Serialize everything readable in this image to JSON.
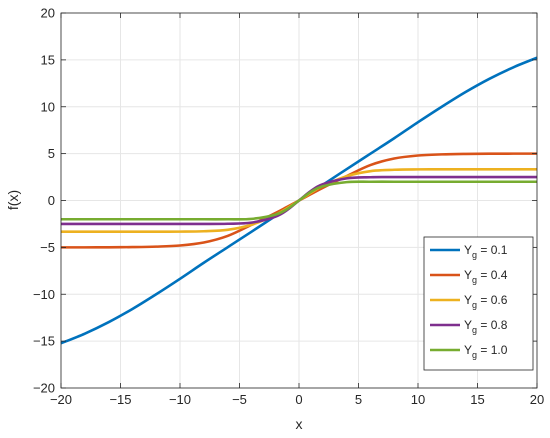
{
  "chart_data": {
    "type": "line",
    "title": "",
    "xlabel": "x",
    "ylabel": "f(x)",
    "xlim": [
      -20,
      20
    ],
    "ylim": [
      -20,
      20
    ],
    "xticks": [
      -20,
      -15,
      -10,
      -5,
      0,
      5,
      10,
      15,
      20
    ],
    "yticks": [
      -20,
      -15,
      -10,
      -5,
      0,
      5,
      10,
      15,
      20
    ],
    "xtick_labels": [
      "−20",
      "−15",
      "−10",
      "−5",
      "0",
      "5",
      "10",
      "15",
      "20"
    ],
    "ytick_labels": [
      "−20",
      "−15",
      "−10",
      "−5",
      "0",
      "5",
      "10",
      "15",
      "20"
    ],
    "grid": true,
    "legend_position": "bottom-right",
    "x": [
      -20,
      -18,
      -16,
      -14,
      -12,
      -10,
      -8,
      -6,
      -4,
      -2,
      -1,
      0,
      1,
      2,
      4,
      6,
      8,
      10,
      12,
      14,
      16,
      18,
      20
    ],
    "series": [
      {
        "name_main": "Y",
        "name_sub": "g",
        "name_rest": " = 0.1",
        "color": "#0072BD",
        "values": [
          -15.23,
          -14.2,
          -12.98,
          -11.57,
          -10.0,
          -8.35,
          -6.64,
          -4.99,
          -3.34,
          -1.67,
          -0.83,
          0.0,
          0.83,
          1.67,
          3.34,
          4.99,
          6.64,
          8.35,
          10.0,
          11.57,
          12.98,
          14.2,
          15.23
        ]
      },
      {
        "name_main": "Y",
        "name_sub": "g",
        "name_rest": " = 0.4",
        "color": "#D95319",
        "values": [
          -5.0,
          -5.0,
          -4.99,
          -4.97,
          -4.92,
          -4.8,
          -4.48,
          -3.78,
          -2.6,
          -1.35,
          -0.68,
          0.0,
          0.68,
          1.35,
          2.6,
          3.78,
          4.48,
          4.8,
          4.92,
          4.97,
          4.99,
          5.0,
          5.0
        ]
      },
      {
        "name_main": "Y",
        "name_sub": "g",
        "name_rest": " = 0.6",
        "color": "#EDB120",
        "values": [
          -3.33,
          -3.33,
          -3.33,
          -3.33,
          -3.33,
          -3.32,
          -3.28,
          -3.13,
          -2.59,
          -1.55,
          -0.83,
          0.0,
          0.83,
          1.55,
          2.59,
          3.13,
          3.28,
          3.32,
          3.33,
          3.33,
          3.33,
          3.33,
          3.33
        ]
      },
      {
        "name_main": "Y",
        "name_sub": "g",
        "name_rest": " = 0.8",
        "color": "#7E2F8E",
        "values": [
          -2.5,
          -2.5,
          -2.5,
          -2.5,
          -2.5,
          -2.5,
          -2.5,
          -2.48,
          -2.36,
          -1.73,
          -1.02,
          0.0,
          1.02,
          1.73,
          2.36,
          2.48,
          2.5,
          2.5,
          2.5,
          2.5,
          2.5,
          2.5,
          2.5
        ]
      },
      {
        "name_main": "Y",
        "name_sub": "g",
        "name_rest": " = 1.0",
        "color": "#77AC30",
        "values": [
          -2.0,
          -2.0,
          -2.0,
          -2.0,
          -2.0,
          -2.0,
          -2.0,
          -2.0,
          -1.96,
          -1.52,
          -0.92,
          0.0,
          0.92,
          1.52,
          1.96,
          2.0,
          2.0,
          2.0,
          2.0,
          2.0,
          2.0,
          2.0,
          2.0
        ]
      }
    ]
  }
}
